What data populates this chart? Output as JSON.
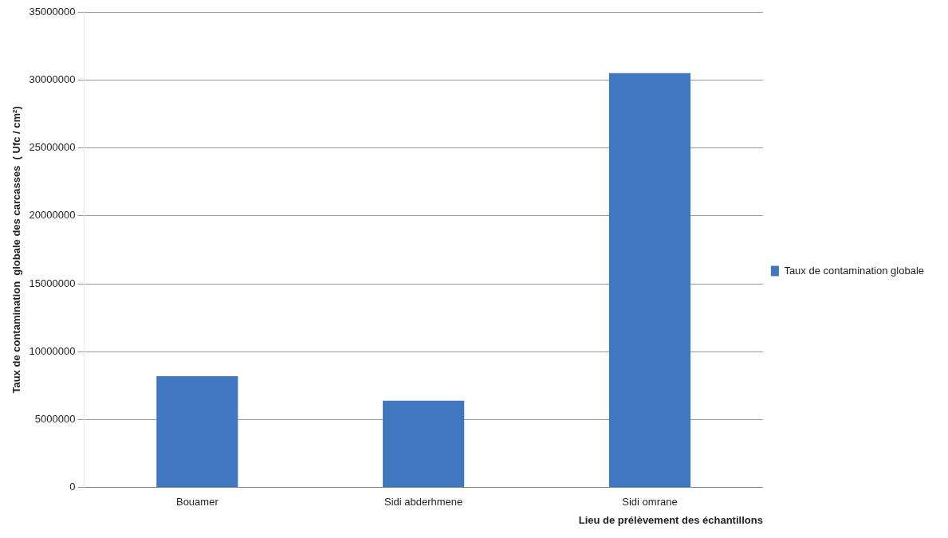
{
  "chart_data": {
    "type": "bar",
    "xlabel": "Lieu de prélèvement des échantillons",
    "ylabel": "Taux de contamination  globale des carcasses  ( Ufc / cm²)",
    "categories": [
      "Bouamer",
      "Sidi abderhmene",
      "Sidi omrane"
    ],
    "series": [
      {
        "name": "Taux de contamination globale",
        "color": "#4177be",
        "values": [
          8200000,
          6400000,
          30500000
        ]
      }
    ],
    "ylim": [
      0,
      35000000
    ],
    "yticks": [
      0,
      5000000,
      10000000,
      15000000,
      20000000,
      25000000,
      30000000,
      35000000
    ],
    "grid": "y",
    "legend": "right"
  }
}
